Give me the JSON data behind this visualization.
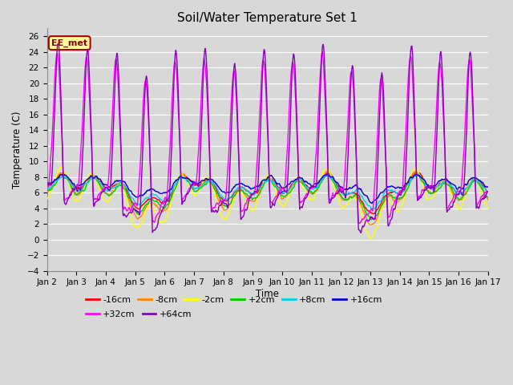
{
  "title": "Soil/Water Temperature Set 1",
  "xlabel": "Time",
  "ylabel": "Temperature (C)",
  "ylim": [
    -4,
    27
  ],
  "yticks": [
    -4,
    -2,
    0,
    2,
    4,
    6,
    8,
    10,
    12,
    14,
    16,
    18,
    20,
    22,
    24,
    26
  ],
  "xtick_labels": [
    "Jan 2",
    "Jan 3",
    "Jan 4",
    "Jan 5",
    "Jan 6",
    "Jan 7",
    "Jan 8",
    "Jan 9",
    "Jan 10",
    "Jan 11",
    "Jan 12",
    "Jan 13",
    "Jan 14",
    "Jan 15",
    "Jan 16",
    "Jan 17"
  ],
  "series_labels": [
    "-16cm",
    "-8cm",
    "-2cm",
    "+2cm",
    "+8cm",
    "+16cm",
    "+32cm",
    "+64cm"
  ],
  "series_colors": [
    "#ff0000",
    "#ff8800",
    "#ffff00",
    "#00cc00",
    "#00ccff",
    "#0000cc",
    "#ff00ff",
    "#8800bb"
  ],
  "annotation_text": "EE_met",
  "annotation_bg": "#ffff99",
  "annotation_border": "#aa0000",
  "fig_bg": "#d8d8d8",
  "plot_bg": "#d8d8d8",
  "grid_color": "#ffffff",
  "n_days": 15,
  "ppd": 48
}
